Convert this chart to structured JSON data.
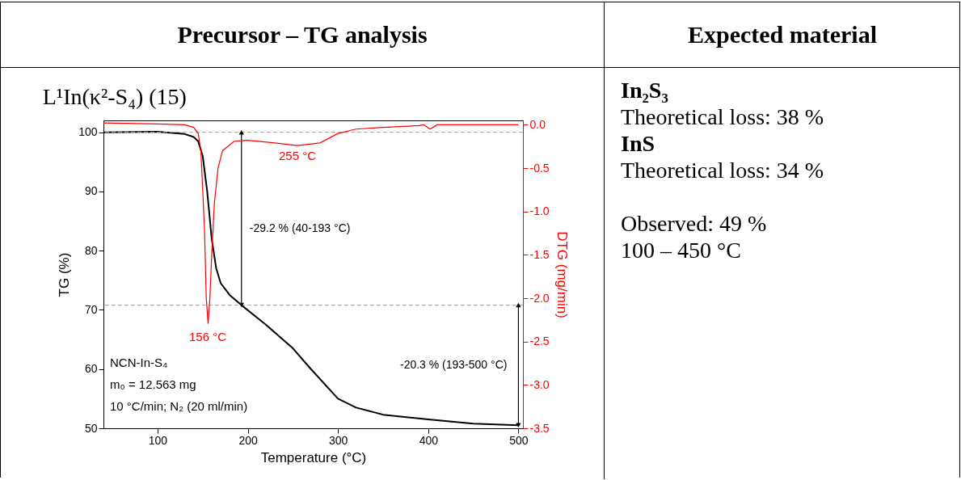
{
  "chart_data": {
    "type": "line",
    "title": "L¹In(κ²-S₄) (15)",
    "xlabel": "Temperature (°C)",
    "ylabel": "TG (%)",
    "y2label": "DTG (mg/min)",
    "x": [
      40,
      100,
      130,
      140,
      145,
      150,
      155,
      160,
      165,
      170,
      180,
      193,
      220,
      250,
      270,
      300,
      320,
      350,
      400,
      450,
      500
    ],
    "series": [
      {
        "color": "#000000",
        "values": [
          100,
          100.1,
          99.7,
          99.2,
          98.5,
          96,
          90,
          82,
          77,
          74.5,
          72.5,
          70.8,
          67.5,
          63.5,
          60,
          55,
          53.5,
          52.3,
          51.5,
          50.8,
          50.5
        ]
      },
      {
        "color": "#ff0000",
        "axis": "y2",
        "x": [
          40,
          100,
          130,
          140,
          145,
          148,
          152,
          154,
          156,
          158,
          160,
          163,
          167,
          172,
          185,
          200,
          230,
          255,
          280,
          300,
          320,
          350,
          390,
          395,
          402,
          410,
          450,
          500
        ],
        "values": [
          0.02,
          0.01,
          0.0,
          -0.03,
          -0.1,
          -0.3,
          -1.2,
          -2.0,
          -2.29,
          -2.0,
          -1.5,
          -0.9,
          -0.5,
          -0.3,
          -0.19,
          -0.18,
          -0.21,
          -0.24,
          -0.21,
          -0.1,
          -0.05,
          -0.03,
          -0.01,
          0.0,
          -0.05,
          0.0,
          0.0,
          0.0
        ]
      }
    ],
    "xlim": [
      40,
      505
    ],
    "xticks": [
      100,
      200,
      300,
      400,
      500
    ],
    "ylim": [
      50,
      102
    ],
    "yticks": [
      50,
      60,
      70,
      80,
      90,
      100
    ],
    "y2lim": [
      -3.5,
      0.05
    ],
    "y2ticks": [
      {
        "value": -3.5,
        "label": "-3.5"
      },
      {
        "value": -3,
        "label": "-3.0"
      },
      {
        "value": -2.5,
        "label": "-2.5"
      },
      {
        "value": -2,
        "label": "-2.0"
      },
      {
        "value": -1.5,
        "label": "-1.5"
      },
      {
        "value": -1,
        "label": "-1.0"
      },
      {
        "value": -0.5,
        "label": "-0.5"
      },
      {
        "value": 0,
        "label": "0.0"
      }
    ],
    "ref_lines": [
      {
        "axis": "y",
        "value": 100,
        "color": "#a0a0a0",
        "line_style": "dashed"
      },
      {
        "axis": "y",
        "value": 70.8,
        "color": "#a0a0a0",
        "line_style": "dashed"
      }
    ],
    "annotations": [
      "Precursor – TG analysis",
      "Expected material",
      "In₂S₃",
      "Theoretical loss: 38 %",
      "InS",
      "Theoretical loss: 34 %",
      "Observed: 49 %",
      "100 – 450 °C",
      "NCN-In-S₄",
      "m₀ = 12.563 mg",
      "10 °C/min; N₂ (20 ml/min)",
      "156 °C",
      "255 °C",
      "-29.2 % (40-193 °C)",
      "-20.3 % (193-500 °C)"
    ],
    "grid": false,
    "marker": "none",
    "line_style": "solid"
  }
}
